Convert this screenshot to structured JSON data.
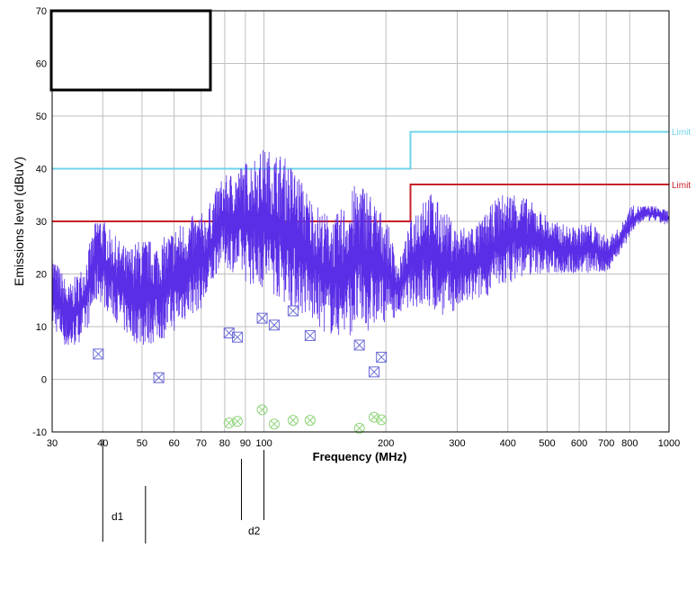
{
  "chart_data": {
    "type": "line",
    "title": "",
    "xlabel": "Frequency (MHz)",
    "ylabel": "Emissions level (dBuV)",
    "x_scale": "log",
    "xlim": [
      30,
      1000
    ],
    "ylim": [
      -10,
      70
    ],
    "grid": true,
    "x_ticks": [
      30,
      40,
      50,
      60,
      70,
      80,
      90,
      100,
      200,
      300,
      400,
      500,
      600,
      700,
      800,
      1000
    ],
    "y_ticks": [
      -10,
      0,
      10,
      20,
      30,
      40,
      50,
      60,
      70
    ],
    "colors": {
      "trace": "#5a2ee6",
      "limit_upper": "#6fd3e8",
      "limit_lower": "#c8202a",
      "qp_marker": "#6b6bd6",
      "avg_marker": "#8fd47a",
      "grid": "#bfbfbf"
    },
    "limits": [
      {
        "name": "Limit",
        "color": "#6fd3e8",
        "segments": [
          {
            "x": [
              30,
              230
            ],
            "y": 40
          },
          {
            "x": [
              230,
              1000
            ],
            "y": 47
          }
        ]
      },
      {
        "name": "Limit",
        "color": "#c8202a",
        "segments": [
          {
            "x": [
              30,
              230
            ],
            "y": 30
          },
          {
            "x": [
              230,
              1000
            ],
            "y": 37
          }
        ]
      }
    ],
    "trace_envelope": {
      "description_points": [
        [
          30,
          10,
          24
        ],
        [
          33,
          5,
          18
        ],
        [
          36,
          8,
          22
        ],
        [
          39,
          15,
          32
        ],
        [
          42,
          12,
          28
        ],
        [
          46,
          8,
          25
        ],
        [
          50,
          6,
          27
        ],
        [
          55,
          7,
          26
        ],
        [
          60,
          9,
          29
        ],
        [
          66,
          12,
          31
        ],
        [
          72,
          14,
          32
        ],
        [
          78,
          22,
          38
        ],
        [
          85,
          20,
          40
        ],
        [
          92,
          18,
          42
        ],
        [
          100,
          17,
          44
        ],
        [
          110,
          15,
          43
        ],
        [
          120,
          13,
          40
        ],
        [
          130,
          11,
          35
        ],
        [
          140,
          9,
          32
        ],
        [
          150,
          8,
          31
        ],
        [
          160,
          8,
          34
        ],
        [
          170,
          9,
          38
        ],
        [
          180,
          9,
          37
        ],
        [
          190,
          10,
          33
        ],
        [
          200,
          11,
          31
        ],
        [
          215,
          12,
          22
        ],
        [
          230,
          14,
          30
        ],
        [
          250,
          13,
          37
        ],
        [
          280,
          12,
          32
        ],
        [
          300,
          13,
          29
        ],
        [
          340,
          15,
          30
        ],
        [
          380,
          17,
          35
        ],
        [
          420,
          19,
          36
        ],
        [
          470,
          20,
          33
        ],
        [
          520,
          20,
          30
        ],
        [
          580,
          20,
          29
        ],
        [
          640,
          20,
          30
        ],
        [
          700,
          20,
          27
        ],
        [
          760,
          24,
          29
        ],
        [
          800,
          27,
          33
        ],
        [
          860,
          30,
          33
        ],
        [
          920,
          30,
          33
        ],
        [
          1000,
          29,
          32
        ]
      ]
    },
    "qp_points": [
      {
        "x": 39,
        "y": 4.8
      },
      {
        "x": 55,
        "y": 0.3
      },
      {
        "x": 82,
        "y": 8.8
      },
      {
        "x": 86,
        "y": 8.0
      },
      {
        "x": 99,
        "y": 11.6
      },
      {
        "x": 106,
        "y": 10.3
      },
      {
        "x": 118,
        "y": 13.0
      },
      {
        "x": 130,
        "y": 8.3
      },
      {
        "x": 172,
        "y": 6.5
      },
      {
        "x": 187,
        "y": 1.4
      },
      {
        "x": 195,
        "y": 4.2
      }
    ],
    "avg_points": [
      {
        "x": 82,
        "y": -8.3
      },
      {
        "x": 86,
        "y": -8.0
      },
      {
        "x": 99,
        "y": -5.8
      },
      {
        "x": 106,
        "y": -8.5
      },
      {
        "x": 118,
        "y": -7.8
      },
      {
        "x": 130,
        "y": -7.8
      },
      {
        "x": 172,
        "y": -9.3
      },
      {
        "x": 187,
        "y": -7.2
      },
      {
        "x": 195,
        "y": -7.7
      }
    ]
  },
  "annotations": {
    "d1_label": "d1",
    "d2_label": "d2",
    "d1_lines_x": [
      40,
      51
    ],
    "d2_lines_x": [
      88,
      100
    ]
  },
  "legend_text": {
    "upper": "Limit",
    "lower": "Limit"
  }
}
